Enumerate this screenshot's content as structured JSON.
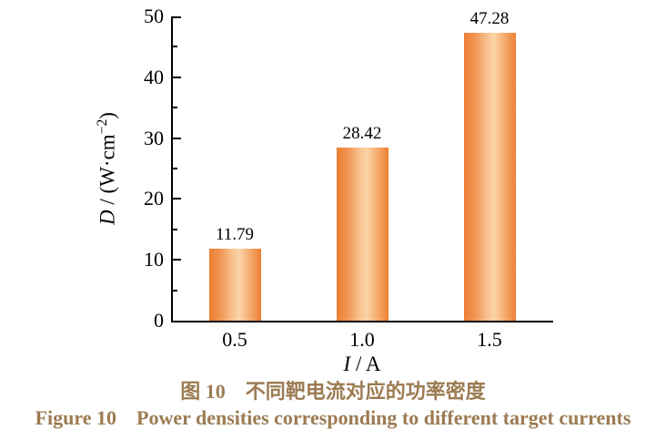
{
  "figure": {
    "background": "#ffffff",
    "axis_color": "#000000",
    "text_color": "#000000"
  },
  "chart_data": {
    "type": "bar",
    "categories": [
      "0.5",
      "1.0",
      "1.5"
    ],
    "values": [
      11.79,
      28.42,
      47.28
    ],
    "value_labels": [
      "11.79",
      "28.42",
      "47.28"
    ],
    "xlabel": "I / A",
    "xlabel_parts": {
      "var": "I",
      "rest": " / A"
    },
    "ylabel": "D / (W·cm⁻²)",
    "ylabel_parts": {
      "var": "D",
      "mid": " / (W·cm",
      "sup": "−2",
      "end": ")"
    },
    "ylim": [
      0,
      50
    ],
    "y_major_ticks": [
      0,
      10,
      20,
      30,
      40,
      50
    ],
    "y_minor_ticks": [
      5,
      15,
      25,
      35,
      45
    ],
    "grid": false,
    "legend": null,
    "bar_color_edge": "#EC7F33",
    "bar_color_mid": "#F09350",
    "bar_color_light": "#F8C391",
    "bar_color_center": "#FBD3A8",
    "bar_color_mid2": "#F5A96B",
    "caption_color": "#9C7B52",
    "title_zh": "图 10　不同靶电流对应的功率密度",
    "title_en": "Figure 10　Power densities corresponding to different target currents"
  }
}
